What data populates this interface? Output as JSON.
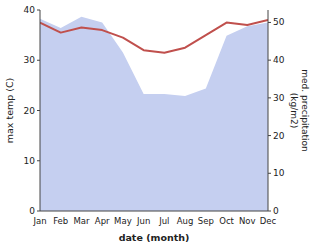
{
  "chart_data": {
    "type": "line",
    "categories": [
      "Jan",
      "Feb",
      "Mar",
      "Apr",
      "May",
      "Jun",
      "Jul",
      "Aug",
      "Sep",
      "Oct",
      "Nov",
      "Dec"
    ],
    "xlabel": "date (month)",
    "ylabel": "max temp (C)",
    "y2label": "med. precipitation\n(kg/m2)",
    "ylim": [
      0,
      40
    ],
    "yticks": [
      0,
      10,
      20,
      30,
      40
    ],
    "y2lim": [
      0,
      53.3
    ],
    "y2ticks": [
      0,
      10,
      20,
      30,
      40,
      50
    ],
    "grid": false,
    "series": [
      {
        "type": "line",
        "color": "#c0504d",
        "values": [
          37.5,
          35.5,
          36.5,
          36.0,
          34.5,
          32.0,
          31.5,
          32.5,
          35.0,
          37.5,
          37.0,
          38.0
        ]
      },
      {
        "type": "area",
        "axis": "y2",
        "color": "#c5cff0",
        "values": [
          51.0,
          48.5,
          51.5,
          50.0,
          42.0,
          31.0,
          31.0,
          30.5,
          32.5,
          46.5,
          49.0,
          50.0
        ]
      }
    ]
  }
}
